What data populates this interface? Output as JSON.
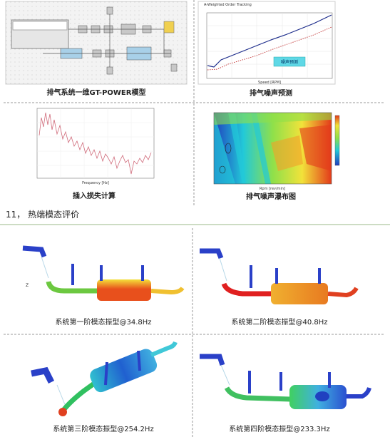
{
  "figures_top": [
    {
      "caption": "排气系统一维GT-POWER模型"
    },
    {
      "caption": "排气噪声预测",
      "chart_title": "A-Weighted Order Tracking",
      "x_label": "Speed [RPM]",
      "button": "噪声预测"
    },
    {
      "caption": "插入损失计算",
      "x_label": "Frequency [Hz]"
    },
    {
      "caption": "排气噪声瀑布图",
      "x_label": "Rpm [rev/min]"
    }
  ],
  "section": {
    "heading": "11， 热端模态评价"
  },
  "figures_bottom": [
    {
      "caption": "系统第一阶模态振型@34.8Hz"
    },
    {
      "caption": "系统第二阶模态振型@40.8Hz"
    },
    {
      "caption": "系统第三阶模态振型@254.2Hz"
    },
    {
      "caption": "系统第四阶模态振型@233.3Hz"
    }
  ]
}
